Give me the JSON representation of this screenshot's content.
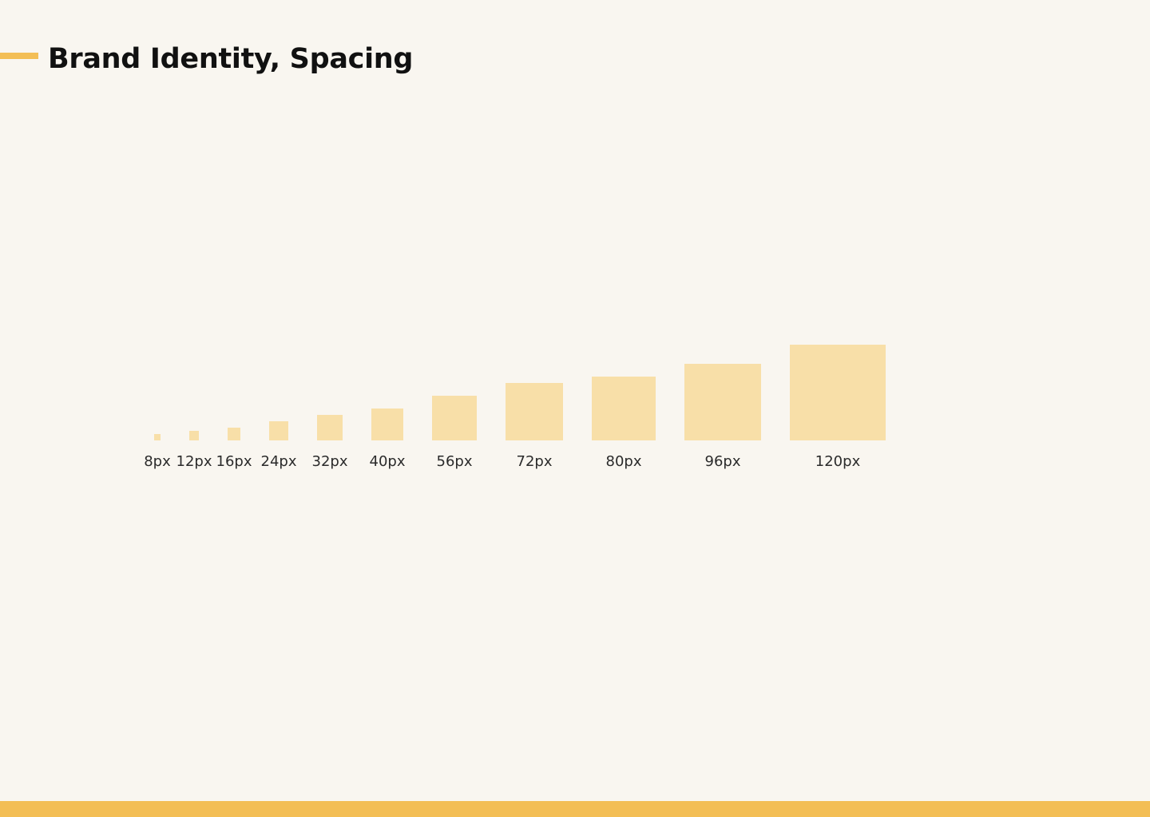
{
  "page": {
    "title": "Brand Identity, Spacing"
  },
  "colors": {
    "background": "#f9f6f0",
    "accent": "#f3be55",
    "swatch": "#f8dfa8",
    "label": "#2b2b2b"
  },
  "spacing_scale": {
    "unit": "px",
    "items": [
      {
        "value": 8,
        "label": "8px"
      },
      {
        "value": 12,
        "label": "12px"
      },
      {
        "value": 16,
        "label": "16px"
      },
      {
        "value": 24,
        "label": "24px"
      },
      {
        "value": 32,
        "label": "32px"
      },
      {
        "value": 40,
        "label": "40px"
      },
      {
        "value": 56,
        "label": "56px"
      },
      {
        "value": 72,
        "label": "72px"
      },
      {
        "value": 80,
        "label": "80px"
      },
      {
        "value": 96,
        "label": "96px"
      },
      {
        "value": 120,
        "label": "120px"
      }
    ]
  }
}
